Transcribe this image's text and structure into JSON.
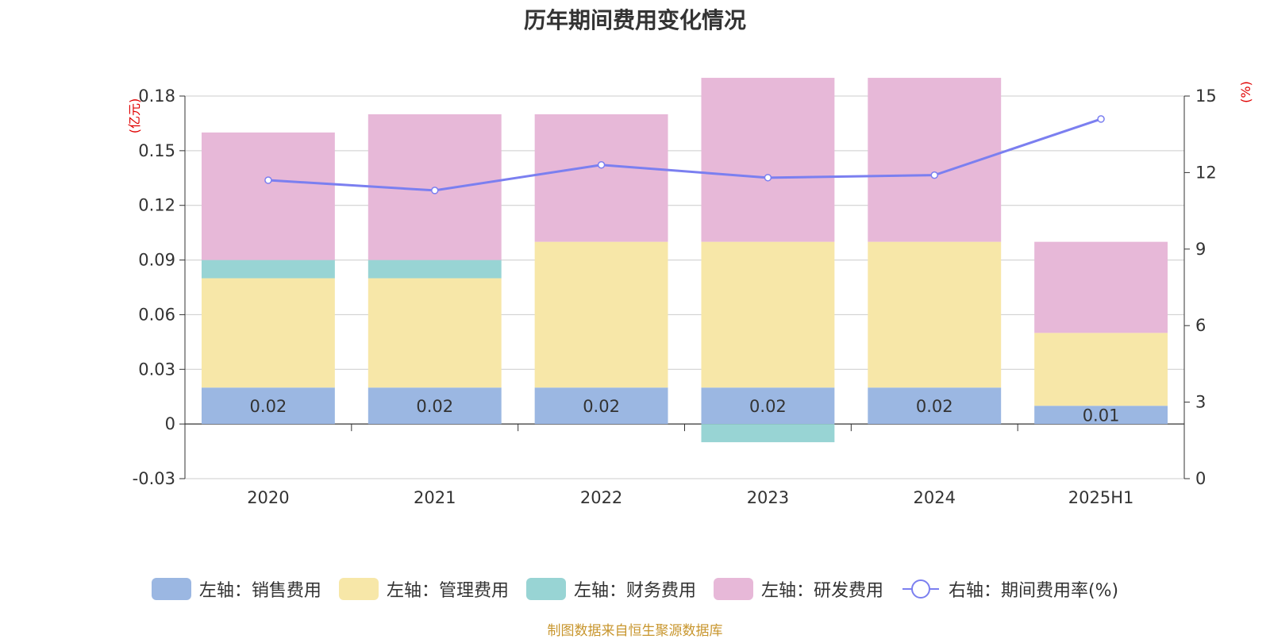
{
  "title": "历年期间费用变化情况",
  "footer": "制图数据来自恒生聚源数据库",
  "chart_data": {
    "type": "bar",
    "categories": [
      "2020",
      "2021",
      "2022",
      "2023",
      "2024",
      "2025H1"
    ],
    "left_axis": {
      "unit": "(亿元)",
      "ylim": [
        -0.03,
        0.18
      ],
      "ticks": [
        "-0.03",
        "0",
        "0.03",
        "0.06",
        "0.09",
        "0.12",
        "0.15",
        "0.18"
      ]
    },
    "right_axis": {
      "unit": "(%)",
      "ylim": [
        0,
        15
      ],
      "ticks": [
        "0",
        "3",
        "6",
        "9",
        "12",
        "15"
      ]
    },
    "series": [
      {
        "name": "左轴：销售费用",
        "color": "#9bb7e2",
        "values": [
          0.02,
          0.02,
          0.02,
          0.02,
          0.02,
          0.01
        ],
        "labels": [
          "0.02",
          "0.02",
          "0.02",
          "0.02",
          "0.02",
          "0.01"
        ]
      },
      {
        "name": "左轴：管理费用",
        "color": "#f7e7a8",
        "values": [
          0.06,
          0.06,
          0.08,
          0.08,
          0.08,
          0.04
        ]
      },
      {
        "name": "左轴：财务费用",
        "color": "#98d4d4",
        "values": [
          0.01,
          0.01,
          0.0,
          -0.01,
          0.0,
          0.0
        ]
      },
      {
        "name": "左轴：研发费用",
        "color": "#e7b8d8",
        "values": [
          0.07,
          0.08,
          0.07,
          0.09,
          0.09,
          0.05
        ]
      }
    ],
    "line": {
      "name": "右轴：期间费用率(%)",
      "color": "#7b7ff0",
      "values": [
        11.7,
        11.3,
        12.3,
        11.8,
        11.9,
        14.1
      ]
    },
    "grid": true,
    "legend": "bottom"
  }
}
